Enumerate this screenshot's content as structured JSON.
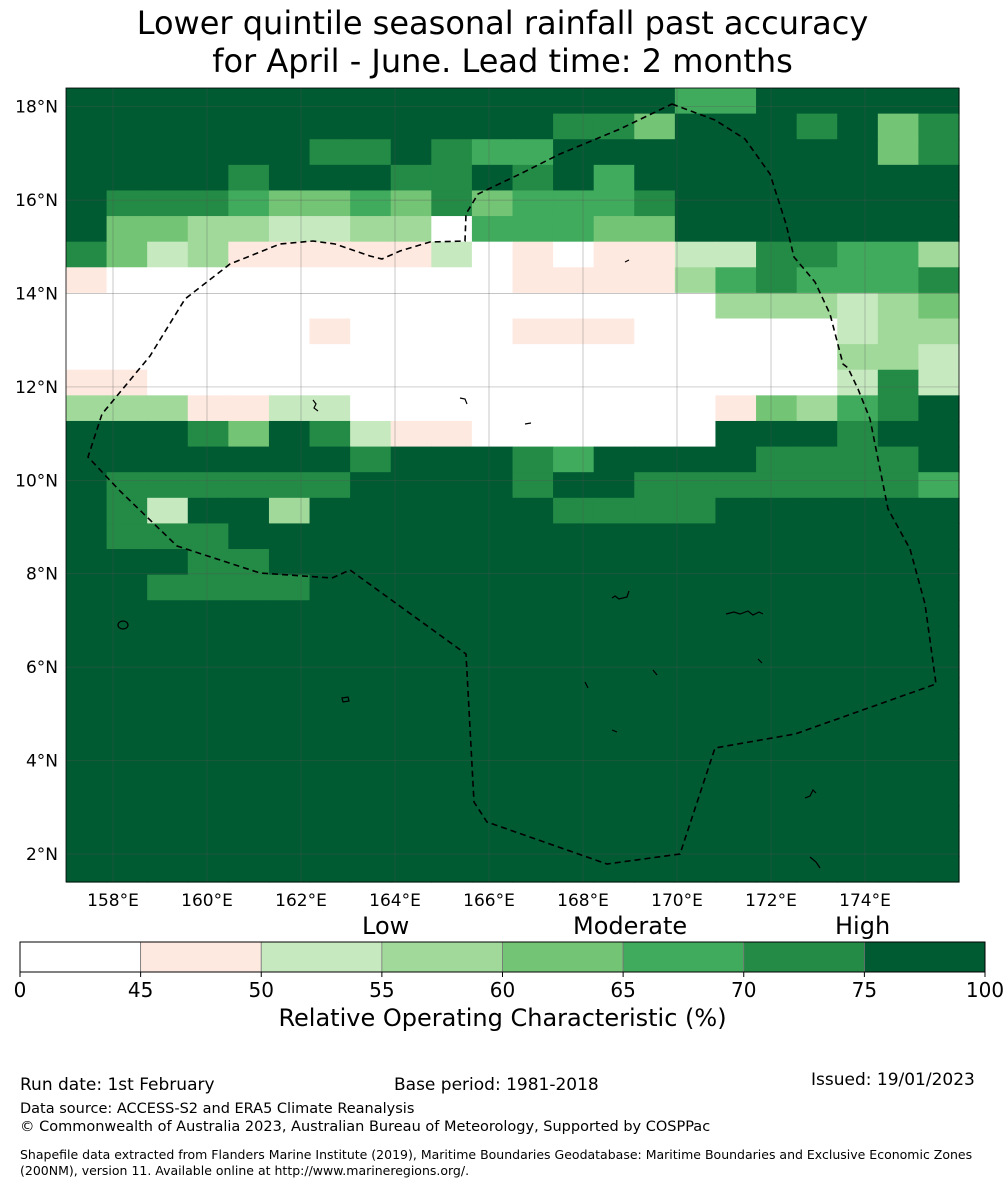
{
  "title": {
    "line1": "Lower quintile seasonal rainfall past accuracy",
    "line2": "for April - June. Lead time: 2 months"
  },
  "map": {
    "lon_labels": [
      "158°E",
      "160°E",
      "162°E",
      "164°E",
      "166°E",
      "168°E",
      "170°E",
      "172°E",
      "174°E"
    ],
    "lat_labels": [
      "18°N",
      "16°N",
      "14°N",
      "12°N",
      "10°N",
      "8°N",
      "6°N",
      "4°N",
      "2°N"
    ],
    "lon_range": [
      157,
      176
    ],
    "lat_range": [
      1.4,
      18.4
    ],
    "grid_rows": [
      "8888888888888775588777",
      "8888888888886648776846",
      "8888886686558888877846",
      "8777688866768588888888",
      "7666544546455568888888",
      "7443322330555448888887",
      "6423111112010112266553",
      "1000000000011113565556",
      "0000000000000000333234",
      "0000001000011100000233",
      "0000000000000000000332",
      "1100000000000000000262",
      "3331122000000000143567",
      "7776476211000000777688",
      "7778877677765787766668",
      "7666666888767766666665",
      "8628838888886666788888",
      "8666777888888888888888",
      "8886688888888888888888",
      "8766668888888888888888",
      "8887788888888888888888",
      "8888888888888888888888",
      "8888888888888888888888",
      "8888888888888888888888",
      "8888888888888888888888",
      "8888888888888888888888",
      "8888888888888888888888",
      "8888888888888888888888",
      "8888888888888888888888",
      "8888888888888888888888",
      "8888888888888888888888"
    ]
  },
  "colors": {
    "bins": [
      "#ffffff",
      "#fee9e0",
      "#c7e9c0",
      "#a1d99b",
      "#74c476",
      "#41ab5d",
      "#238b45",
      "#005a32",
      "#005a32"
    ]
  },
  "colorbar": {
    "categories": [
      {
        "label": "Low"
      },
      {
        "label": "Moderate"
      },
      {
        "label": "High"
      }
    ],
    "ticks": [
      "0",
      "45",
      "50",
      "55",
      "60",
      "65",
      "70",
      "75",
      "100"
    ],
    "colors": [
      "#ffffff",
      "#fee9e0",
      "#c7e9c0",
      "#a1d99b",
      "#74c476",
      "#41ab5d",
      "#238b45",
      "#005a32"
    ],
    "label": "Relative Operating Characteristic (%)"
  },
  "footer": {
    "run_date": "Run date: 1st February",
    "base_period": "Base period: 1981-2018",
    "issued": "Issued: 19/01/2023",
    "data_source": "Data source: ACCESS-S2 and ERA5 Climate Reanalysis",
    "copyright": "© Commonwealth of Australia 2023, Australian Bureau of Meteorology, Supported by COSPPac",
    "shapefile": "Shapefile data extracted from Flanders Marine Institute (2019), Maritime Boundaries Geodatabase: Maritime Boundaries and Exclusive Economic Zones (200NM), version 11. Available online at http://www.marineregions.org/."
  }
}
